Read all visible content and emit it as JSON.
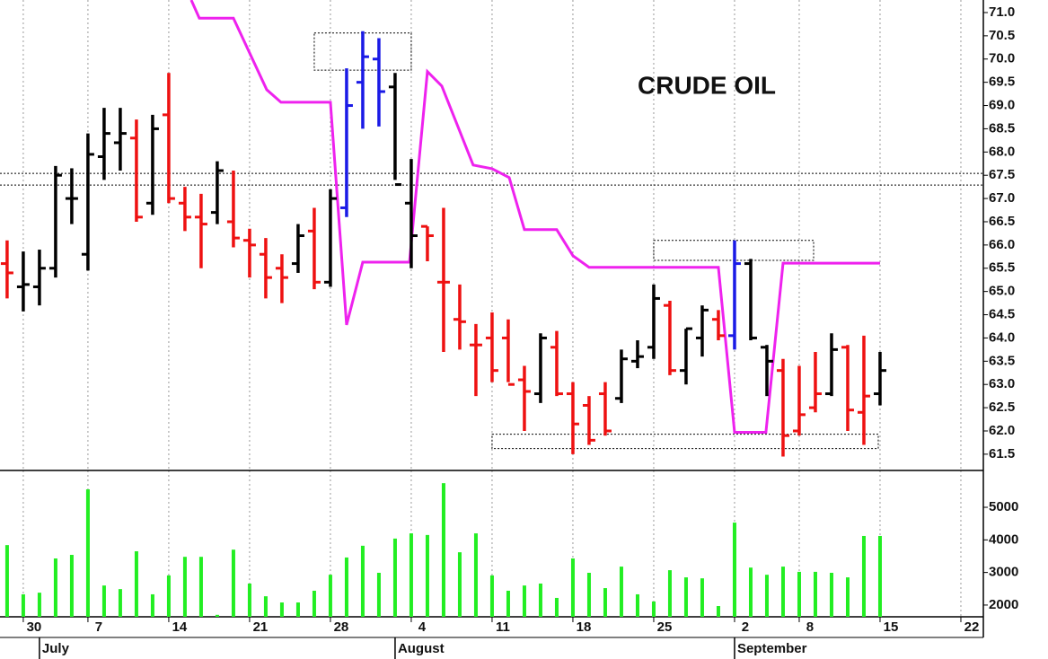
{
  "chart_data": [
    {
      "type": "ohlc",
      "title": "CRUDE OIL",
      "x": [
        0,
        1,
        2,
        3,
        4,
        5,
        6,
        7,
        8,
        9,
        10,
        11,
        12,
        13,
        14,
        15,
        16,
        17,
        18,
        19,
        20,
        21,
        22,
        23,
        24,
        25,
        26,
        27,
        28,
        29,
        30,
        31,
        32,
        33,
        34,
        35,
        36,
        37,
        38,
        39,
        40,
        41,
        42,
        43,
        44,
        45,
        46,
        47,
        48,
        49,
        50,
        51,
        52,
        53,
        54
      ],
      "open": [
        65.6,
        65.1,
        65.1,
        65.5,
        67.0,
        65.8,
        67.9,
        68.2,
        68.3,
        66.9,
        68.8,
        66.9,
        66.6,
        66.7,
        66.5,
        66.1,
        65.8,
        65.5,
        65.6,
        66.3,
        65.2,
        66.8,
        69.5,
        70.0,
        69.4,
        66.9,
        66.4,
        65.2,
        64.4,
        63.85,
        64.0,
        64.0,
        63.1,
        62.8,
        63.8,
        62.8,
        62.55,
        62.8,
        62.7,
        63.5,
        63.8,
        64.7,
        63.3,
        64.0,
        64.4,
        64.05,
        65.6,
        63.8,
        63.3,
        62.0,
        62.5,
        62.8,
        63.8,
        62.4,
        62.8
      ],
      "high": [
        66.1,
        65.86,
        65.9,
        67.7,
        67.65,
        68.4,
        68.95,
        68.95,
        68.7,
        68.8,
        69.7,
        67.25,
        67.1,
        67.8,
        67.6,
        66.35,
        66.15,
        65.8,
        66.45,
        66.8,
        67.2,
        69.8,
        70.6,
        70.45,
        69.7,
        67.85,
        66.4,
        66.8,
        65.15,
        64.3,
        64.55,
        64.4,
        63.4,
        64.1,
        64.15,
        63.05,
        62.75,
        63.05,
        63.75,
        63.95,
        65.15,
        64.8,
        64.2,
        64.7,
        64.6,
        66.1,
        65.7,
        63.85,
        63.55,
        63.4,
        63.7,
        64.1,
        63.85,
        64.05,
        63.7
      ],
      "low": [
        64.85,
        64.57,
        64.7,
        65.3,
        66.45,
        65.45,
        67.4,
        67.6,
        66.5,
        66.65,
        66.9,
        66.3,
        65.5,
        66.45,
        65.95,
        65.3,
        64.85,
        64.75,
        65.4,
        65.05,
        65.1,
        66.6,
        68.5,
        68.55,
        67.4,
        65.5,
        65.65,
        63.7,
        63.75,
        62.75,
        63.05,
        63.05,
        62.0,
        62.6,
        62.75,
        61.5,
        61.7,
        61.9,
        62.6,
        63.35,
        63.55,
        63.2,
        63.0,
        63.6,
        63.95,
        63.75,
        63.95,
        62.75,
        61.45,
        61.9,
        62.4,
        62.75,
        62.0,
        61.7,
        62.55
      ],
      "close": [
        65.4,
        65.15,
        65.5,
        67.5,
        67.0,
        67.95,
        68.4,
        68.4,
        66.6,
        68.5,
        67.0,
        66.6,
        66.45,
        67.6,
        66.15,
        66.0,
        65.3,
        65.3,
        66.2,
        65.2,
        67.0,
        69.0,
        70.05,
        69.3,
        67.3,
        66.2,
        66.2,
        65.2,
        64.35,
        63.85,
        63.3,
        63.0,
        62.85,
        64.0,
        62.8,
        62.15,
        61.8,
        62.0,
        63.55,
        63.6,
        64.85,
        63.3,
        64.2,
        64.6,
        64.05,
        65.6,
        64.0,
        63.5,
        61.9,
        62.35,
        62.8,
        63.75,
        62.45,
        62.75,
        63.3
      ],
      "bar_colors": [
        "#ee1111",
        "#000000",
        "#000000",
        "#000000",
        "#000000",
        "#000000",
        "#000000",
        "#000000",
        "#ee1111",
        "#000000",
        "#ee1111",
        "#ee1111",
        "#ee1111",
        "#000000",
        "#ee1111",
        "#ee1111",
        "#ee1111",
        "#ee1111",
        "#000000",
        "#ee1111",
        "#000000",
        "#1a1ae6",
        "#1a1ae6",
        "#1a1ae6",
        "#000000",
        "#000000",
        "#ee1111",
        "#ee1111",
        "#ee1111",
        "#ee1111",
        "#ee1111",
        "#ee1111",
        "#ee1111",
        "#000000",
        "#ee1111",
        "#ee1111",
        "#ee1111",
        "#ee1111",
        "#000000",
        "#000000",
        "#000000",
        "#ee1111",
        "#000000",
        "#000000",
        "#ee1111",
        "#1a1ae6",
        "#000000",
        "#000000",
        "#ee1111",
        "#ee1111",
        "#ee1111",
        "#000000",
        "#ee1111",
        "#ee1111",
        "#000000"
      ],
      "stop_line": {
        "color": "#ee22ee",
        "x": [
          11.39,
          11.89,
          14.0,
          16.06,
          16.94,
          20.0,
          21.0,
          22.0,
          24.89,
          26.0,
          26.89,
          28.83,
          30.0,
          31.06,
          32.0,
          34.0,
          35.0,
          36.0,
          44.0,
          45.0,
          46.94,
          48.0,
          54.0
        ],
        "values": [
          71.27,
          70.88,
          70.88,
          69.34,
          69.07,
          69.07,
          64.28,
          65.63,
          65.63,
          69.73,
          69.42,
          67.72,
          67.64,
          67.45,
          66.33,
          66.33,
          65.77,
          65.52,
          65.52,
          61.97,
          61.97,
          65.61,
          65.61
        ]
      },
      "hlines": [
        67.54,
        67.29
      ],
      "boxes": [
        {
          "x": [
            19.0,
            25.0
          ],
          "y": [
            69.76,
            70.56
          ]
        },
        {
          "x": [
            40.0,
            49.89
          ],
          "y": [
            65.67,
            66.1
          ]
        },
        {
          "x": [
            30.0,
            53.89
          ],
          "y": [
            61.62,
            61.93
          ]
        }
      ],
      "xlim": [
        -0.44,
        60.39
      ],
      "ylim": [
        61.15,
        71.27
      ],
      "yticks": [
        61.5,
        {
          "value": 62,
          "label": "62.0"
        },
        62.5,
        {
          "value": 63,
          "label": "63.0"
        },
        63.5,
        {
          "value": 64,
          "label": "64.0"
        },
        64.5,
        {
          "value": 65,
          "label": "65.0"
        },
        65.5,
        {
          "value": 66,
          "label": "66.0"
        },
        66.5,
        {
          "value": 67,
          "label": "67.0"
        },
        67.5,
        {
          "value": 68,
          "label": "68.0"
        },
        68.5,
        {
          "value": 69,
          "label": "69.0"
        },
        69.5,
        {
          "value": 70,
          "label": "70.0"
        },
        70.5,
        {
          "value": 71,
          "label": "71.0"
        }
      ]
    },
    {
      "type": "bar",
      "color": "#22ee22",
      "x": [
        0,
        1,
        2,
        3,
        4,
        5,
        6,
        7,
        8,
        9,
        10,
        11,
        12,
        13,
        14,
        15,
        16,
        17,
        18,
        19,
        20,
        21,
        22,
        23,
        24,
        25,
        26,
        27,
        28,
        29,
        30,
        31,
        32,
        33,
        34,
        35,
        36,
        37,
        38,
        39,
        40,
        41,
        42,
        43,
        44,
        45,
        46,
        47,
        48,
        49,
        50,
        51,
        52,
        53,
        54
      ],
      "values": [
        3840,
        2330,
        2380,
        3430,
        3540,
        5550,
        2600,
        2490,
        3650,
        2330,
        2910,
        3480,
        3480,
        1700,
        3700,
        2660,
        2270,
        2080,
        2080,
        2440,
        2930,
        3460,
        3820,
        2990,
        4040,
        4200,
        4150,
        5740,
        3620,
        4200,
        2910,
        2440,
        2600,
        2660,
        2220,
        3430,
        2990,
        2520,
        3180,
        2330,
        2110,
        3070,
        2850,
        2820,
        1970,
        4530,
        3150,
        2930,
        3180,
        3020,
        3020,
        2990,
        2850,
        4120,
        4120
      ],
      "xlim": [
        -0.44,
        60.39
      ],
      "ylim": [
        1640,
        6130
      ],
      "yticks": [
        2000,
        3000,
        4000,
        5000
      ],
      "xticks": [
        {
          "value": 1,
          "label": "30"
        },
        {
          "value": 5,
          "label": "7"
        },
        {
          "value": 10,
          "label": "14"
        },
        {
          "value": 15,
          "label": "21"
        },
        {
          "value": 20,
          "label": "28"
        },
        {
          "value": 25,
          "label": "4"
        },
        {
          "value": 30,
          "label": "11"
        },
        {
          "value": 35,
          "label": "18"
        },
        {
          "value": 40,
          "label": "25"
        },
        {
          "value": 45,
          "label": "2"
        },
        {
          "value": 49,
          "label": "8"
        },
        {
          "value": 54,
          "label": "15"
        },
        {
          "value": 59,
          "label": "22"
        }
      ],
      "month_ticks": [
        {
          "value": 2,
          "label": "July"
        },
        {
          "value": 24,
          "label": "August"
        },
        {
          "value": 45,
          "label": "September"
        }
      ]
    }
  ]
}
